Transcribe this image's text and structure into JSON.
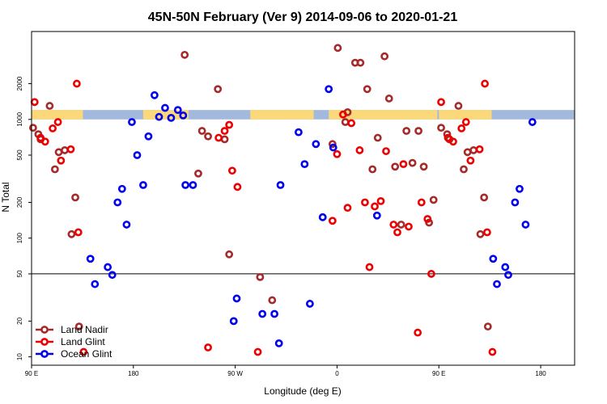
{
  "chart_data": {
    "type": "scatter",
    "title": "45N-50N February (Ver 9)   2014-09-06 to 2020-01-21",
    "xlabel": "Longitude (deg E)",
    "ylabel": "N Total",
    "y_scale": "log",
    "xlim": [
      0,
      720
    ],
    "ylim": [
      8.5,
      5500
    ],
    "x_ticks": [
      {
        "value": 0,
        "label": "90 E"
      },
      {
        "value": 135,
        "label": "180"
      },
      {
        "value": 270,
        "label": "90 W"
      },
      {
        "value": 405,
        "label": "0"
      },
      {
        "value": 540,
        "label": "90 E"
      },
      {
        "value": 675,
        "label": "180"
      }
    ],
    "y_ticks": [
      {
        "value": 10,
        "label": "10"
      },
      {
        "value": 20,
        "label": "20"
      },
      {
        "value": 50,
        "label": "50"
      },
      {
        "value": 100,
        "label": "100"
      },
      {
        "value": 200,
        "label": "200"
      },
      {
        "value": 500,
        "label": "500"
      },
      {
        "value": 1000,
        "label": "1000"
      },
      {
        "value": 2000,
        "label": "2000"
      }
    ],
    "reference_line": 50,
    "band": {
      "y_min": 1000,
      "y_max": 1200,
      "ocean_color": "#a3b8dd",
      "land_color": "#fbd97a"
    },
    "legend_position": "bottom-left",
    "series": [
      {
        "name": "Land Nadir",
        "color": "#a52a2a",
        "points": [
          [
            2,
            850
          ],
          [
            9,
            750
          ],
          [
            12,
            680
          ],
          [
            24,
            1300
          ],
          [
            31,
            380
          ],
          [
            36,
            530
          ],
          [
            44,
            550
          ],
          [
            53,
            108
          ],
          [
            58,
            220
          ],
          [
            63,
            18
          ],
          [
            203,
            3500
          ],
          [
            221,
            350
          ],
          [
            226,
            800
          ],
          [
            234,
            720
          ],
          [
            247,
            1800
          ],
          [
            256,
            680
          ],
          [
            262,
            73
          ],
          [
            303,
            47
          ],
          [
            319,
            30
          ],
          [
            399,
            620
          ],
          [
            406,
            4000
          ],
          [
            416,
            950
          ],
          [
            419,
            1150
          ],
          [
            429,
            3000
          ],
          [
            436,
            3000
          ],
          [
            445,
            1800
          ],
          [
            452,
            380
          ],
          [
            459,
            700
          ],
          [
            468,
            3400
          ],
          [
            474,
            1500
          ],
          [
            482,
            400
          ],
          [
            490,
            130
          ],
          [
            497,
            800
          ],
          [
            505,
            430
          ],
          [
            513,
            800
          ],
          [
            520,
            400
          ],
          [
            527,
            135
          ],
          [
            533,
            210
          ],
          [
            543,
            850
          ],
          [
            551,
            750
          ],
          [
            554,
            680
          ],
          [
            566,
            1300
          ],
          [
            573,
            380
          ],
          [
            578,
            530
          ],
          [
            586,
            550
          ],
          [
            595,
            108
          ],
          [
            600,
            220
          ],
          [
            605,
            18
          ]
        ]
      },
      {
        "name": "Land Glint",
        "color": "#ee0000",
        "points": [
          [
            4,
            1400
          ],
          [
            12,
            700
          ],
          [
            18,
            650
          ],
          [
            28,
            840
          ],
          [
            35,
            950
          ],
          [
            39,
            450
          ],
          [
            52,
            560
          ],
          [
            60,
            2000
          ],
          [
            62,
            112
          ],
          [
            69,
            11
          ],
          [
            234,
            12
          ],
          [
            248,
            700
          ],
          [
            256,
            800
          ],
          [
            262,
            900
          ],
          [
            266,
            370
          ],
          [
            273,
            270
          ],
          [
            300,
            11
          ],
          [
            399,
            140
          ],
          [
            405,
            510
          ],
          [
            413,
            1100
          ],
          [
            419,
            180
          ],
          [
            424,
            930
          ],
          [
            435,
            550
          ],
          [
            442,
            200
          ],
          [
            448,
            57
          ],
          [
            455,
            185
          ],
          [
            463,
            205
          ],
          [
            470,
            540
          ],
          [
            480,
            130
          ],
          [
            485,
            112
          ],
          [
            493,
            420
          ],
          [
            500,
            125
          ],
          [
            512,
            16
          ],
          [
            517,
            200
          ],
          [
            525,
            145
          ],
          [
            530,
            50
          ],
          [
            543,
            1400
          ],
          [
            552,
            700
          ],
          [
            559,
            650
          ],
          [
            570,
            840
          ],
          [
            576,
            950
          ],
          [
            582,
            450
          ],
          [
            594,
            560
          ],
          [
            601,
            2000
          ],
          [
            604,
            112
          ],
          [
            611,
            11
          ]
        ]
      },
      {
        "name": "Ocean Glint",
        "color": "#0000ee",
        "points": [
          [
            78,
            67
          ],
          [
            84,
            41
          ],
          [
            101,
            57
          ],
          [
            107,
            49
          ],
          [
            114,
            200
          ],
          [
            120,
            260
          ],
          [
            126,
            130
          ],
          [
            133,
            950
          ],
          [
            140,
            500
          ],
          [
            148,
            280
          ],
          [
            155,
            720
          ],
          [
            163,
            1600
          ],
          [
            169,
            1050
          ],
          [
            177,
            1250
          ],
          [
            185,
            1030
          ],
          [
            194,
            1200
          ],
          [
            201,
            1080
          ],
          [
            204,
            280
          ],
          [
            214,
            280
          ],
          [
            268,
            20
          ],
          [
            272,
            31
          ],
          [
            306,
            23
          ],
          [
            322,
            23
          ],
          [
            328,
            13
          ],
          [
            330,
            280
          ],
          [
            354,
            780
          ],
          [
            362,
            420
          ],
          [
            369,
            28
          ],
          [
            377,
            620
          ],
          [
            386,
            150
          ],
          [
            394,
            1800
          ],
          [
            400,
            580
          ],
          [
            458,
            155
          ],
          [
            612,
            67
          ],
          [
            617,
            41
          ],
          [
            628,
            57
          ],
          [
            632,
            49
          ],
          [
            641,
            200
          ],
          [
            647,
            260
          ],
          [
            655,
            130
          ],
          [
            664,
            950
          ]
        ]
      }
    ]
  }
}
